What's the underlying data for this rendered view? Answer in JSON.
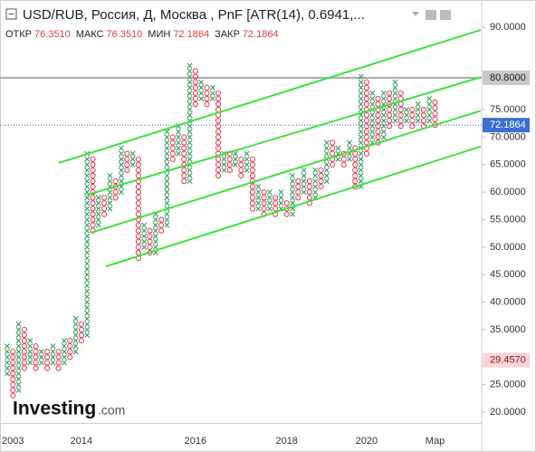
{
  "header": {
    "title": "USD/RUB, Россия, Д, Москва , PnF [ATR(14), 0.6941,...",
    "ohlc": [
      {
        "label": "ОТКР",
        "value": "76.3510"
      },
      {
        "label": "МАКС",
        "value": "76.3510"
      },
      {
        "label": "МИН",
        "value": "72.1864"
      },
      {
        "label": "ЗАКР",
        "value": "72.1864"
      }
    ]
  },
  "logo": {
    "brand": "Investing",
    "suffix": ".com"
  },
  "chart_data": {
    "type": "pnf",
    "categories": [
      null,
      "2003",
      null,
      null,
      null,
      null,
      null,
      null,
      null,
      null,
      null,
      null,
      null,
      "2014",
      null,
      null,
      null,
      null,
      null,
      null,
      null,
      null,
      null,
      null,
      null,
      null,
      null,
      null,
      null,
      null,
      null,
      null,
      null,
      "2016",
      null,
      null,
      null,
      null,
      null,
      null,
      null,
      null,
      null,
      null,
      null,
      null,
      null,
      null,
      null,
      "2018",
      null,
      null,
      null,
      null,
      null,
      null,
      null,
      null,
      null,
      null,
      null,
      null,
      null,
      "2020",
      null,
      null,
      null,
      null,
      null,
      null,
      null,
      null,
      null,
      null,
      null,
      "Мар"
    ],
    "start_direction": "up",
    "lows": [
      27,
      23,
      24,
      28,
      29,
      28,
      29,
      28,
      29,
      28,
      29,
      30,
      31,
      33,
      34,
      53,
      54,
      56,
      57,
      59,
      60,
      64,
      65,
      48,
      50,
      49,
      49,
      53,
      54,
      66,
      67,
      62,
      62,
      76,
      77,
      76,
      77,
      63,
      64,
      64,
      65,
      63,
      64,
      57,
      57,
      56,
      57,
      56,
      57,
      56,
      56,
      59,
      60,
      58,
      59,
      61,
      62,
      65,
      66,
      65,
      66,
      61,
      61,
      67,
      69,
      69,
      70,
      72,
      73,
      72,
      73,
      72,
      73,
      72,
      73,
      72.1864
    ],
    "highs": [
      32,
      31,
      36,
      35,
      33,
      32,
      31,
      31,
      32,
      31,
      33,
      33,
      37,
      36,
      67,
      66,
      59,
      59,
      63,
      62,
      68,
      67,
      67,
      66,
      54,
      53,
      56,
      55,
      71,
      70,
      72,
      70,
      83,
      82,
      80,
      79,
      79,
      78,
      67,
      67,
      67,
      66,
      67,
      66,
      61,
      60,
      60,
      59,
      60,
      58,
      63,
      62,
      64,
      62,
      64,
      64,
      69,
      69,
      68,
      67,
      69,
      68,
      81,
      80,
      78,
      77,
      78,
      78,
      80,
      78,
      75,
      75,
      76,
      75,
      77,
      76.351
    ],
    "up_color": "#2e9e5e",
    "down_color": "#e8455a",
    "trend_color": "#3ee23e",
    "trend_lines": [
      {
        "x": [
          9,
          83
        ],
        "y": [
          65.3,
          89.5
        ]
      },
      {
        "x": [
          14,
          83
        ],
        "y": [
          59.5,
          80.9
        ]
      },
      {
        "x": [
          14.6,
          83
        ],
        "y": [
          52.6,
          74.8
        ]
      },
      {
        "x": [
          17.3,
          83
        ],
        "y": [
          46.5,
          68.3
        ]
      }
    ],
    "ylim": [
      18,
      93
    ],
    "yticks": [
      {
        "value": 20,
        "label": "20.0000"
      },
      {
        "value": 25,
        "label": "25.0000"
      },
      {
        "value": 35,
        "label": "35.0000"
      },
      {
        "value": 40,
        "label": "40.0000"
      },
      {
        "value": 45,
        "label": "45.0000"
      },
      {
        "value": 50,
        "label": "50.0000"
      },
      {
        "value": 55,
        "label": "55.0000"
      },
      {
        "value": 60,
        "label": "60.0000"
      },
      {
        "value": 65,
        "label": "65.0000"
      },
      {
        "value": 70,
        "label": "70.0000"
      },
      {
        "value": 75,
        "label": "75.0000"
      },
      {
        "value": 90,
        "label": "90.0000"
      }
    ],
    "price_marks": [
      {
        "value": 80.8,
        "label": "80.8000",
        "bg": "#c8c8c8",
        "fg": "#222222",
        "line": "solid",
        "line_color": "#aaaaaa"
      },
      {
        "value": 72.1864,
        "label": "72.1864",
        "bg": "#3d6fd1",
        "fg": "#ffffff",
        "line": "dotted",
        "line_color": "#3d5fa8"
      },
      {
        "value": 29.457,
        "label": "29.4570",
        "bg": "#fbd3d8",
        "fg": "#8a1a24",
        "line": "none",
        "line_color": "none"
      }
    ]
  }
}
